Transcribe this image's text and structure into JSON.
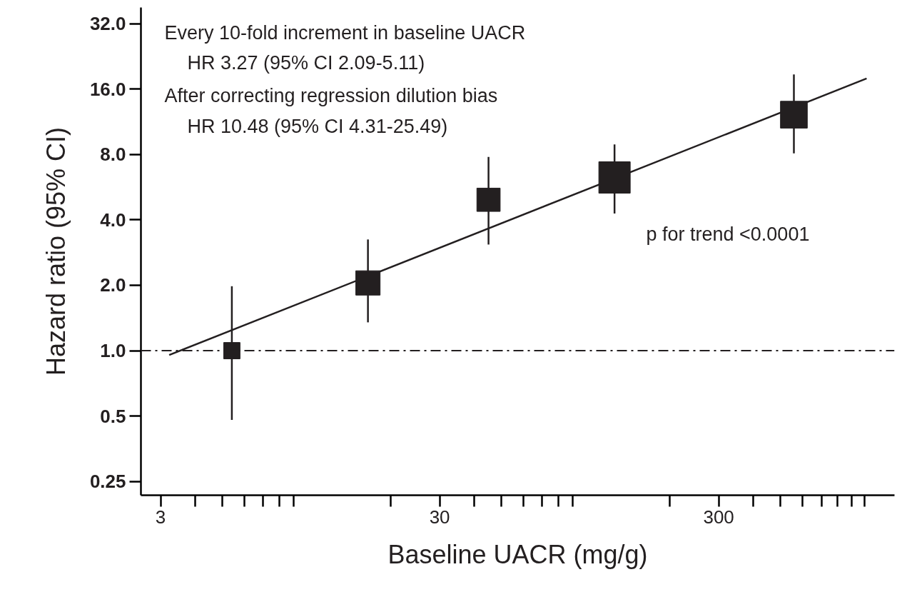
{
  "chart_data": {
    "type": "bubble",
    "xlabel": "Baseline UACR (mg/g)",
    "ylabel": "Hazard ratio (95% CI)",
    "log": "xy",
    "grid": false,
    "marker": "square",
    "xlim": [
      2.55,
      1280
    ],
    "ylim": [
      0.216,
      38
    ],
    "xticks": [
      3,
      {
        "value": 4,
        "label": null
      },
      {
        "value": 5,
        "label": null
      },
      {
        "value": 6,
        "label": null
      },
      {
        "value": 7,
        "label": null
      },
      {
        "value": 8,
        "label": null
      },
      {
        "value": 9,
        "label": null
      },
      {
        "value": 20,
        "label": null
      },
      30,
      {
        "value": 40,
        "label": null
      },
      {
        "value": 50,
        "label": null
      },
      {
        "value": 60,
        "label": null
      },
      {
        "value": 70,
        "label": null
      },
      {
        "value": 80,
        "label": null
      },
      {
        "value": 90,
        "label": null
      },
      {
        "value": 200,
        "label": null
      },
      300,
      {
        "value": 400,
        "label": null
      },
      {
        "value": 500,
        "label": null
      },
      {
        "value": 600,
        "label": null
      },
      {
        "value": 700,
        "label": null
      },
      {
        "value": 800,
        "label": null
      },
      {
        "value": 900,
        "label": null
      },
      {
        "value": 1000,
        "label": null
      }
    ],
    "yticks": [
      {
        "value": 0.25,
        "label": "0.25"
      },
      {
        "value": 0.5,
        "label": "0.5"
      },
      {
        "value": 1,
        "label": "1.0"
      },
      {
        "value": 2,
        "label": "2.0"
      },
      {
        "value": 4,
        "label": "4.0"
      },
      {
        "value": 8,
        "label": "8.0"
      },
      {
        "value": 16,
        "label": "16.0"
      },
      {
        "value": 32,
        "label": "32.0"
      }
    ],
    "series": [
      {
        "color": "#231f20",
        "x": [
          5.4,
          16.6,
          44.9,
          127,
          558
        ],
        "values": [
          1.0,
          2.05,
          4.95,
          6.27,
          12.2
        ],
        "sizes": [
          0.27,
          0.6,
          0.55,
          1,
          0.73
        ],
        "errors": [
          [
            0.48,
            1.98
          ],
          [
            1.35,
            3.25
          ],
          [
            3.08,
            7.8
          ],
          [
            4.28,
            8.9
          ],
          [
            8.1,
            18.7
          ]
        ]
      },
      {
        "type": "line",
        "color": "#231f20",
        "line_style": "solid",
        "marker": "none",
        "x": [
          3.22,
          1017
        ],
        "values": [
          0.955,
          17.9
        ]
      }
    ],
    "ref_lines": [
      {
        "axis": "y",
        "value": 1,
        "label": null,
        "color": "#231f20",
        "line_style": "dashdot"
      }
    ],
    "annotations": [
      "Every 10-fold increment in baseline UACR",
      "HR 3.27 (95% CI 2.09-5.11)",
      "After correcting regression dilution bias",
      "HR 10.48 (95% CI 4.31-25.49)",
      "p for trend <0.0001"
    ]
  }
}
